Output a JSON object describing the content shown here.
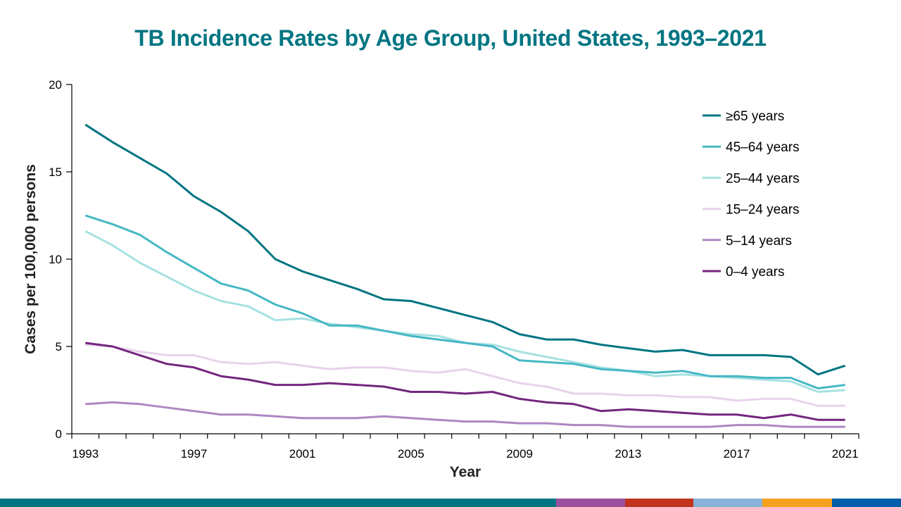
{
  "title": "TB Incidence Rates by Age Group, United States, 1993–2021",
  "footer_colors": [
    "#007582",
    "#9A509C",
    "#C1331F",
    "#88B2D7",
    "#F6A01F",
    "#005EAA"
  ],
  "chart_data": {
    "type": "line",
    "title": "TB Incidence Rates by Age Group, United States, 1993–2021",
    "xlabel": "Year",
    "ylabel": "Cases per 100,000 persons",
    "ylim": [
      0,
      20
    ],
    "yticks": [
      0,
      5,
      10,
      15,
      20
    ],
    "x": [
      1993,
      1994,
      1995,
      1996,
      1997,
      1998,
      1999,
      2000,
      2001,
      2002,
      2003,
      2004,
      2005,
      2006,
      2007,
      2008,
      2009,
      2010,
      2011,
      2012,
      2013,
      2014,
      2015,
      2016,
      2017,
      2018,
      2019,
      2020,
      2021
    ],
    "xtick_labels": [
      "1993",
      "1997",
      "2001",
      "2005",
      "2009",
      "2013",
      "2017",
      "2021"
    ],
    "grid": false,
    "legend_position": "top-right",
    "series": [
      {
        "name": "≥65 years",
        "color": "#007582",
        "values": [
          17.7,
          16.7,
          15.8,
          14.9,
          13.6,
          12.7,
          11.6,
          10.0,
          9.3,
          8.8,
          8.3,
          7.7,
          7.6,
          7.2,
          6.8,
          6.4,
          5.7,
          5.4,
          5.4,
          5.1,
          4.9,
          4.7,
          4.8,
          4.5,
          4.5,
          4.5,
          4.4,
          3.4,
          3.9
        ]
      },
      {
        "name": "45–64 years",
        "color": "#45B8C4",
        "values": [
          12.5,
          12.0,
          11.4,
          10.4,
          9.5,
          8.6,
          8.2,
          7.4,
          6.9,
          6.2,
          6.2,
          5.9,
          5.6,
          5.4,
          5.2,
          5.0,
          4.2,
          4.1,
          4.0,
          3.7,
          3.6,
          3.5,
          3.6,
          3.3,
          3.3,
          3.2,
          3.2,
          2.6,
          2.8
        ]
      },
      {
        "name": "25–44 years",
        "color": "#A6E1E1",
        "values": [
          11.6,
          10.8,
          9.8,
          9.0,
          8.2,
          7.6,
          7.3,
          6.5,
          6.6,
          6.3,
          6.1,
          5.9,
          5.7,
          5.6,
          5.2,
          5.1,
          4.7,
          4.4,
          4.1,
          3.8,
          3.6,
          3.3,
          3.4,
          3.3,
          3.2,
          3.1,
          3.0,
          2.4,
          2.5
        ]
      },
      {
        "name": "15–24 years",
        "color": "#E7D3EA",
        "values": [
          5.1,
          5.0,
          4.7,
          4.5,
          4.5,
          4.1,
          4.0,
          4.1,
          3.9,
          3.7,
          3.8,
          3.8,
          3.6,
          3.5,
          3.7,
          3.3,
          2.9,
          2.7,
          2.3,
          2.3,
          2.2,
          2.2,
          2.1,
          2.1,
          1.9,
          2.0,
          2.0,
          1.6,
          1.6
        ]
      },
      {
        "name": "5–14 years",
        "color": "#AD88C2",
        "values": [
          1.7,
          1.8,
          1.7,
          1.5,
          1.3,
          1.1,
          1.1,
          1.0,
          0.9,
          0.9,
          0.9,
          1.0,
          0.9,
          0.8,
          0.7,
          0.7,
          0.6,
          0.6,
          0.5,
          0.5,
          0.4,
          0.4,
          0.4,
          0.4,
          0.5,
          0.5,
          0.4,
          0.4,
          0.4
        ]
      },
      {
        "name": "0–4 years",
        "color": "#74267F",
        "values": [
          5.2,
          5.0,
          4.5,
          4.0,
          3.8,
          3.3,
          3.1,
          2.8,
          2.8,
          2.9,
          2.8,
          2.7,
          2.4,
          2.4,
          2.3,
          2.4,
          2.0,
          1.8,
          1.7,
          1.3,
          1.4,
          1.3,
          1.2,
          1.1,
          1.1,
          0.9,
          1.1,
          0.8,
          0.8
        ]
      }
    ]
  }
}
